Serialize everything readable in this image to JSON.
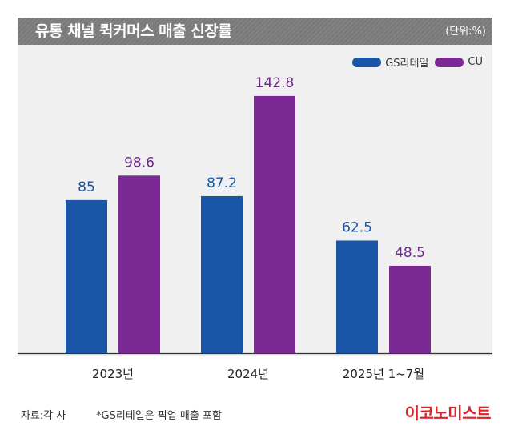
{
  "header": {
    "title": "유통 채널 퀵커머스 매출 신장률",
    "unit": "(단위:%)"
  },
  "colors": {
    "gs": "#1a56a8",
    "cu": "#7b2a95",
    "gs_label": "#1a56a8",
    "cu_label": "#6b2a8a",
    "header_bg": "#7a7a7a",
    "plot_bg": "#f0f0f0",
    "brand": "#d8232a"
  },
  "legend": [
    {
      "name": "GS리테일",
      "color_key": "gs"
    },
    {
      "name": "CU",
      "color_key": "cu"
    }
  ],
  "chart_data": {
    "type": "bar",
    "categories": [
      "2023년",
      "2024년",
      "2025년 1~7월"
    ],
    "series": [
      {
        "name": "GS리테일",
        "values": [
          85,
          87.2,
          62.5
        ],
        "labels": [
          "85",
          "87.2",
          "62.5"
        ]
      },
      {
        "name": "CU",
        "values": [
          98.6,
          142.8,
          48.5
        ],
        "labels": [
          "98.6",
          "142.8",
          "48.5"
        ]
      }
    ],
    "ylim": [
      0,
      165
    ],
    "grid": false,
    "legend_position": "top-right"
  },
  "footer": {
    "source": "자료:각 사",
    "note": "*GS리테일은 픽업 매출 포함",
    "brand": "이코노미스트"
  }
}
